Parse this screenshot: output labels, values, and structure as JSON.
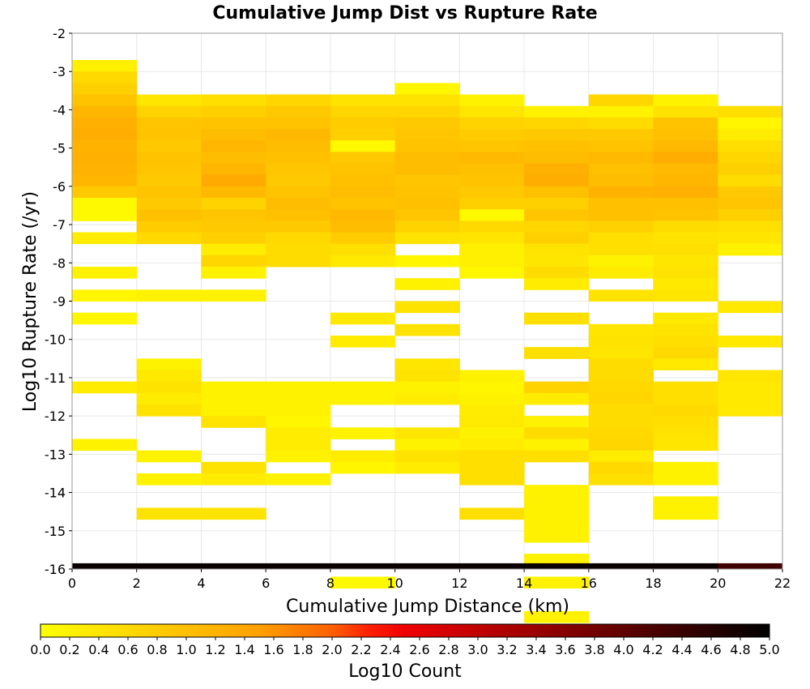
{
  "chart_data": {
    "type": "heatmap",
    "title": "Cumulative Jump Dist vs Rupture Rate",
    "xlabel": "Cumulative Jump Distance (km)",
    "ylabel": "Log10 Rupture Rate (/yr)",
    "xlim": [
      0,
      22
    ],
    "ylim": [
      -16,
      -2
    ],
    "xticks": [
      0,
      2,
      4,
      6,
      8,
      10,
      12,
      14,
      16,
      18,
      20,
      22
    ],
    "yticks": [
      -2,
      -3,
      -4,
      -5,
      -6,
      -7,
      -8,
      -9,
      -10,
      -11,
      -12,
      -13,
      -14,
      -15,
      -16
    ],
    "x_bin_width": 2,
    "y_bin_height": 0.3,
    "grid": true,
    "colorbar": {
      "label": "Log10 Count",
      "range": [
        0.0,
        5.0
      ],
      "ticks": [
        0.0,
        0.2,
        0.4,
        0.6,
        0.8,
        1.0,
        1.2,
        1.4,
        1.6,
        1.8,
        2.0,
        2.2,
        2.4,
        2.6,
        2.8,
        3.0,
        3.2,
        3.4,
        3.6,
        3.8,
        4.0,
        4.2,
        4.4,
        4.6,
        4.8,
        5.0
      ],
      "tick_labels": [
        "0.0",
        "0.2",
        "0.4",
        "0.6",
        "0.8",
        "1.0",
        "1.2",
        "1.4",
        "1.6",
        "1.8",
        "2.0",
        "2.2",
        "2.4",
        "2.6",
        "2.8",
        "3.0",
        "3.2",
        "3.4",
        "3.6",
        "3.8",
        "4.0",
        "4.2",
        "4.4",
        "4.6",
        "4.8",
        "5.0"
      ],
      "stops": [
        [
          0.0,
          "#ffff00"
        ],
        [
          0.3,
          "#ffa000"
        ],
        [
          0.4,
          "#ff6000"
        ],
        [
          0.45,
          "#ff2000"
        ],
        [
          0.5,
          "#f00000"
        ],
        [
          0.6,
          "#c00000"
        ],
        [
          0.8,
          "#600000"
        ],
        [
          0.9,
          "#300000"
        ],
        [
          1.0,
          "#000000"
        ]
      ]
    },
    "columns": [
      {
        "x0": 0,
        "y_top": -2.7,
        "values": [
          0.25,
          0.6,
          0.75,
          0.95,
          1.15,
          1.25,
          1.3,
          1.2,
          1.25,
          1.2,
          1.15,
          0.85,
          0.1,
          0.1,
          null,
          0.3,
          null,
          null,
          0.2,
          null,
          0.15,
          null,
          0.15,
          null,
          null,
          null,
          null,
          null,
          0.3,
          null,
          null,
          null,
          null,
          0.2
        ]
      },
      {
        "x0": 2,
        "y_top": -3.6,
        "values": [
          0.4,
          0.7,
          0.9,
          0.95,
          0.85,
          0.95,
          0.9,
          0.85,
          0.95,
          0.85,
          1.0,
          0.8,
          0.6,
          null,
          null,
          null,
          null,
          0.2,
          null,
          null,
          null,
          null,
          null,
          0.2,
          0.35,
          0.45,
          0.3,
          0.45,
          null,
          null,
          null,
          0.2,
          null,
          0.2,
          null,
          null,
          0.45
        ]
      },
      {
        "x0": 4,
        "y_top": -3.6,
        "values": [
          0.5,
          0.75,
          0.95,
          1.05,
          1.15,
          1.05,
          1.15,
          1.35,
          1.1,
          0.7,
          0.9,
          0.85,
          0.75,
          0.3,
          0.65,
          0.2,
          null,
          0.2,
          null,
          null,
          null,
          null,
          null,
          null,
          null,
          0.2,
          0.2,
          0.2,
          0.45,
          null,
          null,
          null,
          0.45,
          0.3,
          null,
          null,
          0.45
        ]
      },
      {
        "x0": 6,
        "y_top": -3.6,
        "values": [
          0.65,
          0.85,
          0.95,
          1.1,
          1.05,
          1.0,
          0.9,
          0.85,
          0.95,
          1.05,
          1.0,
          0.85,
          0.6,
          0.55,
          0.55,
          null,
          null,
          null,
          null,
          null,
          null,
          null,
          null,
          null,
          null,
          0.2,
          0.2,
          0.2,
          0.15,
          0.3,
          0.3,
          0.2,
          null,
          0.2
        ]
      },
      {
        "x0": 8,
        "y_top": -3.6,
        "values": [
          0.45,
          0.65,
          0.8,
          0.75,
          0.1,
          0.85,
          0.95,
          1.0,
          1.05,
          0.95,
          1.1,
          1.05,
          0.8,
          0.5,
          0.35,
          null,
          null,
          null,
          null,
          0.35,
          null,
          0.3,
          null,
          null,
          null,
          0.2,
          0.2,
          null,
          null,
          0.2,
          null,
          0.3,
          0.15,
          null,
          null,
          null,
          null,
          null,
          null,
          null,
          null,
          null,
          0.1
        ]
      },
      {
        "x0": 10,
        "y_top": -3.3,
        "values": [
          0.15,
          0.45,
          0.65,
          0.85,
          0.9,
          0.95,
          1.05,
          1.05,
          0.9,
          0.95,
          1.0,
          0.9,
          0.7,
          0.45,
          null,
          0.15,
          null,
          0.2,
          null,
          0.45,
          null,
          0.45,
          null,
          null,
          0.4,
          0.45,
          0.2,
          0.3,
          null,
          null,
          0.4,
          0.2,
          0.45,
          0.3
        ]
      },
      {
        "x0": 12,
        "y_top": -3.6,
        "values": [
          0.2,
          0.4,
          0.7,
          0.8,
          0.9,
          1.1,
          1.0,
          0.95,
          0.85,
          0.75,
          0.1,
          0.6,
          0.4,
          0.25,
          0.25,
          0.15,
          null,
          null,
          null,
          null,
          null,
          null,
          null,
          null,
          0.2,
          0.15,
          0.2,
          0.3,
          0.35,
          0.2,
          0.3,
          0.5,
          0.5,
          0.5,
          null,
          null,
          0.5
        ]
      },
      {
        "x0": 14,
        "y_top": -3.9,
        "values": [
          0.2,
          0.65,
          0.85,
          1.0,
          1.05,
          1.25,
          1.3,
          1.0,
          0.75,
          0.9,
          0.65,
          0.75,
          0.45,
          0.4,
          0.55,
          0.3,
          null,
          null,
          0.5,
          null,
          null,
          0.5,
          null,
          null,
          0.7,
          0.3,
          null,
          0.2,
          0.55,
          0.2,
          0.5,
          null,
          null,
          0.2,
          0.2,
          0.2,
          0.2,
          0.2,
          null,
          0.2,
          null,
          0.2,
          null,
          null,
          0.2
        ]
      },
      {
        "x0": 16,
        "y_top": -3.6,
        "values": [
          0.65,
          0.2,
          0.55,
          0.85,
          0.95,
          1.1,
          1.0,
          1.05,
          1.2,
          1.0,
          1.0,
          0.75,
          0.5,
          0.5,
          0.2,
          0.3,
          null,
          0.45,
          null,
          null,
          0.4,
          0.45,
          0.4,
          0.55,
          0.55,
          0.6,
          0.65,
          0.55,
          0.55,
          0.6,
          0.65,
          0.3,
          0.6,
          0.5
        ]
      },
      {
        "x0": 18,
        "y_top": -3.6,
        "values": [
          0.2,
          0.45,
          0.95,
          1.0,
          1.1,
          1.3,
          1.1,
          1.15,
          1.25,
          1.0,
          0.95,
          0.55,
          0.45,
          0.5,
          0.4,
          0.45,
          0.35,
          0.4,
          null,
          0.35,
          0.45,
          0.5,
          0.6,
          0.35,
          null,
          0.5,
          0.5,
          0.6,
          0.5,
          0.45,
          0.4,
          null,
          0.2,
          0.2,
          null,
          0.2,
          0.2
        ]
      },
      {
        "x0": 20,
        "y_top": -3.9,
        "values": [
          0.5,
          0.15,
          0.3,
          0.5,
          0.65,
          0.75,
          0.55,
          0.85,
          0.9,
          0.75,
          0.5,
          0.4,
          0.2,
          null,
          null,
          null,
          null,
          0.35,
          null,
          null,
          0.35,
          null,
          null,
          0.4,
          0.35,
          0.35,
          0.35
        ]
      }
    ],
    "floor_row": {
      "y0": -16,
      "y1": -15.85,
      "values": [
        4.9,
        4.9,
        4.9,
        4.9,
        4.9,
        4.9,
        4.9,
        4.9,
        4.9,
        4.9,
        4.35
      ]
    }
  }
}
